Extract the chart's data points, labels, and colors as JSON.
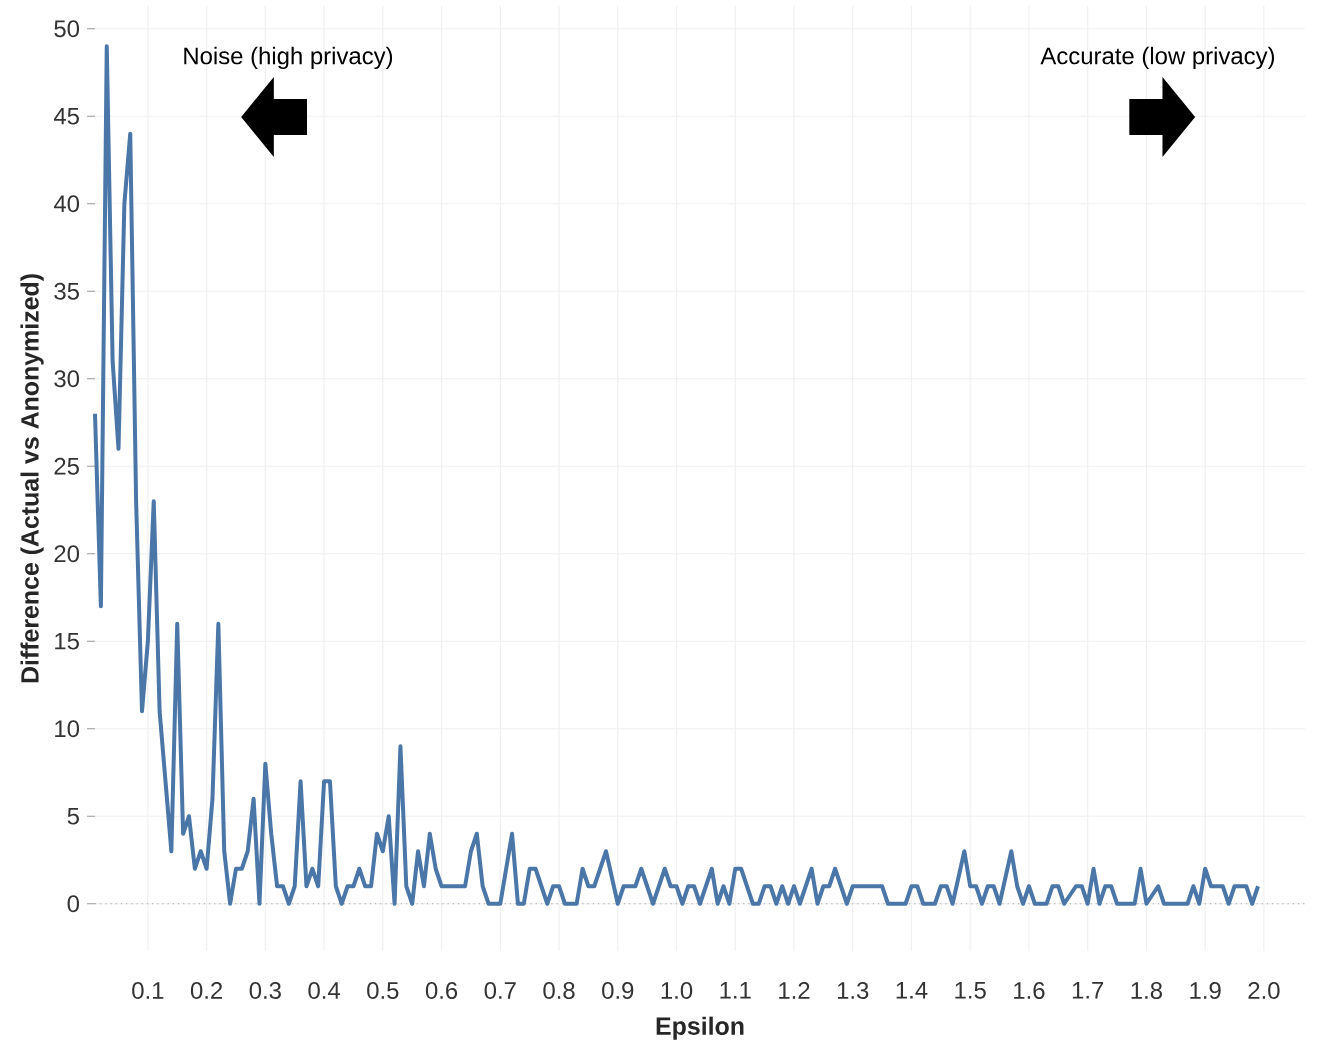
{
  "chart_data": {
    "type": "line",
    "xlabel": "Epsilon",
    "ylabel": "Difference (Actual vs Anonymized)",
    "annotations": [
      "Noise (high privacy)",
      "Accurate (low privacy)"
    ],
    "x": [
      0.01,
      0.02,
      0.03,
      0.04,
      0.05,
      0.06,
      0.07,
      0.08,
      0.09,
      0.1,
      0.11,
      0.12,
      0.13,
      0.14,
      0.15,
      0.16,
      0.17,
      0.18,
      0.19,
      0.2,
      0.21,
      0.22,
      0.23,
      0.24,
      0.25,
      0.26,
      0.27,
      0.28,
      0.29,
      0.3,
      0.31,
      0.32,
      0.33,
      0.34,
      0.35,
      0.36,
      0.37,
      0.38,
      0.39,
      0.4,
      0.41,
      0.42,
      0.43,
      0.44,
      0.45,
      0.46,
      0.47,
      0.48,
      0.49,
      0.5,
      0.51,
      0.52,
      0.53,
      0.54,
      0.55,
      0.56,
      0.57,
      0.58,
      0.59,
      0.6,
      0.64,
      0.65,
      0.66,
      0.67,
      0.68,
      0.7,
      0.72,
      0.73,
      0.74,
      0.75,
      0.76,
      0.78,
      0.79,
      0.8,
      0.81,
      0.83,
      0.84,
      0.85,
      0.86,
      0.88,
      0.9,
      0.91,
      0.93,
      0.94,
      0.96,
      0.98,
      0.99,
      1.0,
      1.01,
      1.02,
      1.03,
      1.04,
      1.06,
      1.07,
      1.08,
      1.09,
      1.1,
      1.11,
      1.13,
      1.14,
      1.15,
      1.16,
      1.17,
      1.18,
      1.19,
      1.2,
      1.21,
      1.23,
      1.24,
      1.25,
      1.26,
      1.27,
      1.29,
      1.3,
      1.35,
      1.36,
      1.39,
      1.4,
      1.41,
      1.42,
      1.44,
      1.45,
      1.46,
      1.47,
      1.49,
      1.5,
      1.51,
      1.52,
      1.53,
      1.54,
      1.55,
      1.57,
      1.58,
      1.59,
      1.6,
      1.61,
      1.63,
      1.64,
      1.65,
      1.66,
      1.68,
      1.69,
      1.7,
      1.71,
      1.72,
      1.73,
      1.74,
      1.75,
      1.78,
      1.79,
      1.8,
      1.82,
      1.83,
      1.87,
      1.88,
      1.89,
      1.9,
      1.91,
      1.93,
      1.94,
      1.95,
      1.97,
      1.98,
      1.99
    ],
    "series": [
      {
        "color": "#4a76a8",
        "values": [
          28,
          17,
          49,
          31,
          26,
          40,
          44,
          23,
          11,
          15,
          23,
          11,
          7,
          3,
          16,
          4,
          5,
          2,
          3,
          2,
          6,
          16,
          3,
          0,
          2,
          2,
          3,
          6,
          0,
          8,
          4,
          1,
          1,
          0,
          1,
          7,
          1,
          2,
          1,
          7,
          7,
          1,
          0,
          1,
          1,
          2,
          1,
          1,
          4,
          3,
          5,
          0,
          9,
          1,
          0,
          3,
          1,
          4,
          2,
          1,
          1,
          3,
          4,
          1,
          0,
          0,
          4,
          0,
          0,
          2,
          2,
          0,
          1,
          1,
          0,
          0,
          2,
          1,
          1,
          3,
          0,
          1,
          1,
          2,
          0,
          2,
          1,
          1,
          0,
          1,
          1,
          0,
          2,
          0,
          1,
          0,
          2,
          2,
          0,
          0,
          1,
          1,
          0,
          1,
          0,
          1,
          0,
          2,
          0,
          1,
          1,
          2,
          0,
          1,
          1,
          0,
          0,
          1,
          1,
          0,
          0,
          1,
          1,
          0,
          3,
          1,
          1,
          0,
          1,
          1,
          0,
          3,
          1,
          0,
          1,
          0,
          0,
          1,
          1,
          0,
          1,
          1,
          0,
          2,
          0,
          1,
          1,
          0,
          0,
          2,
          0,
          1,
          0,
          0,
          1,
          0,
          2,
          1,
          1,
          0,
          1,
          1,
          0,
          1
        ]
      }
    ],
    "xlim": [
      0.01,
      2.07
    ],
    "ylim": [
      -2.7,
      51.3
    ],
    "xticks": [
      {
        "value": 0.1,
        "label": "0.1"
      },
      {
        "value": 0.2,
        "label": "0.2"
      },
      {
        "value": 0.3,
        "label": "0.3"
      },
      {
        "value": 0.4,
        "label": "0.4"
      },
      {
        "value": 0.5,
        "label": "0.5"
      },
      {
        "value": 0.6,
        "label": "0.6"
      },
      {
        "value": 0.7,
        "label": "0.7"
      },
      {
        "value": 0.8,
        "label": "0.8"
      },
      {
        "value": 0.9,
        "label": "0.9"
      },
      {
        "value": 1,
        "label": "1.0"
      },
      {
        "value": 1.1,
        "label": "1.1"
      },
      {
        "value": 1.2,
        "label": "1.2"
      },
      {
        "value": 1.3,
        "label": "1.3"
      },
      {
        "value": 1.4,
        "label": "1.4"
      },
      {
        "value": 1.5,
        "label": "1.5"
      },
      {
        "value": 1.6,
        "label": "1.6"
      },
      {
        "value": 1.7,
        "label": "1.7"
      },
      {
        "value": 1.8,
        "label": "1.8"
      },
      {
        "value": 1.9,
        "label": "1.9"
      },
      {
        "value": 2,
        "label": "2.0"
      }
    ],
    "yticks": [
      0,
      5,
      10,
      15,
      20,
      25,
      30,
      35,
      40,
      45,
      50
    ],
    "grid": true,
    "marker": "none",
    "line_style": "solid",
    "ref_lines": [
      {
        "axis": "y",
        "value": 0,
        "color": "#aaaaaa",
        "line_style": "dotted"
      }
    ]
  }
}
